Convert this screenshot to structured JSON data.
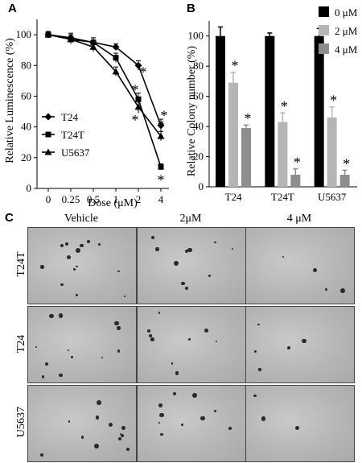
{
  "panels": {
    "a": "A",
    "b": "B",
    "c": "C"
  },
  "chart_data": [
    {
      "type": "line",
      "panel": "A",
      "xlabel": "Dose (μM)",
      "ylabel": "Relative Luminescence (%)",
      "categories": [
        "0",
        "0.25",
        "0.5",
        "1",
        "2",
        "4"
      ],
      "ylim": [
        0,
        110
      ],
      "yticks": [
        "0",
        "20",
        "40",
        "60",
        "80",
        "100"
      ],
      "legend_position": "lower-left",
      "series": [
        {
          "name": "T24",
          "marker": "diamond",
          "values": [
            100,
            98,
            95,
            92,
            80,
            41
          ],
          "errors": [
            2,
            3,
            3,
            2,
            3,
            4
          ]
        },
        {
          "name": "T24T",
          "marker": "square",
          "values": [
            100,
            97,
            95,
            85,
            58,
            14
          ],
          "errors": [
            2,
            3,
            3,
            3,
            4,
            2
          ]
        },
        {
          "name": "U5637",
          "marker": "triangle",
          "values": [
            100,
            97,
            92,
            76,
            53,
            34
          ],
          "errors": [
            2,
            3,
            3,
            3,
            4,
            3
          ]
        }
      ],
      "annotations": [
        "*",
        "*",
        "*",
        "*",
        "*",
        "*"
      ]
    },
    {
      "type": "bar",
      "panel": "B",
      "ylabel": "Relative Colony number (%)",
      "categories": [
        "T24",
        "T24T",
        "U5637"
      ],
      "ylim": [
        0,
        110
      ],
      "yticks": [
        "0",
        "20",
        "40",
        "60",
        "80",
        "100"
      ],
      "legend_position": "top-right",
      "series": [
        {
          "name": "0 μM",
          "color": "#000000",
          "values": [
            100,
            100,
            100
          ],
          "errors": [
            6,
            2,
            5
          ]
        },
        {
          "name": "2 μM",
          "color": "#b5b5b5",
          "values": [
            69,
            43,
            46
          ],
          "errors": [
            7,
            6,
            7
          ]
        },
        {
          "name": "4 μM",
          "color": "#8d8d8d",
          "values": [
            39,
            8,
            8
          ],
          "errors": [
            2,
            4,
            3
          ]
        }
      ],
      "significance": "*"
    }
  ],
  "panel_c": {
    "columns": [
      "Vehicle",
      "2μM",
      "4 μM"
    ],
    "rows": [
      "T24T",
      "T24",
      "U5637"
    ]
  }
}
